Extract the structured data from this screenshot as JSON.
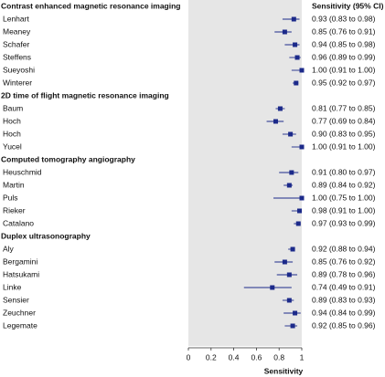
{
  "chart_data": {
    "type": "forest",
    "column_header": "Sensitivity (95% CI)",
    "x_label": "Sensitivity",
    "xlim": [
      0,
      1
    ],
    "xticks": [
      0,
      0.2,
      0.4,
      0.6,
      0.8,
      1
    ],
    "color": "#1c2a8a",
    "background": "#e6e6e6",
    "groups": [
      {
        "name": "Contrast enhanced magnetic resonance imaging",
        "categories": [
          "Lenhart",
          "Meaney",
          "Schafer",
          "Steffens",
          "Sueyoshi",
          "Winterer"
        ],
        "values": [
          0.93,
          0.85,
          0.94,
          0.96,
          1.0,
          0.95
        ],
        "lower": [
          0.83,
          0.76,
          0.85,
          0.89,
          0.91,
          0.92
        ],
        "upper": [
          0.98,
          0.91,
          0.98,
          0.99,
          1.0,
          0.97
        ],
        "value_labels": [
          "0.93 (0.83 to 0.98)",
          "0.85 (0.76 to 0.91)",
          "0.94 (0.85 to 0.98)",
          "0.96 (0.89 to 0.99)",
          "1.00 (0.91 to 1.00)",
          "0.95 (0.92 to 0.97)"
        ]
      },
      {
        "name": "2D time of flight magnetic resonance imaging",
        "categories": [
          "Baum",
          "Hoch",
          "Hoch",
          "Yucel"
        ],
        "values": [
          0.81,
          0.77,
          0.9,
          1.0
        ],
        "lower": [
          0.77,
          0.69,
          0.83,
          0.91
        ],
        "upper": [
          0.85,
          0.84,
          0.95,
          1.0
        ],
        "value_labels": [
          "0.81 (0.77 to 0.85)",
          "0.77 (0.69 to 0.84)",
          "0.90 (0.83 to 0.95)",
          "1.00 (0.91 to 1.00)"
        ]
      },
      {
        "name": "Computed tomography angiography",
        "categories": [
          "Heuschmid",
          "Martin",
          "Puls",
          "Rieker",
          "Catalano"
        ],
        "values": [
          0.91,
          0.89,
          1.0,
          0.98,
          0.97
        ],
        "lower": [
          0.8,
          0.84,
          0.75,
          0.91,
          0.93
        ],
        "upper": [
          0.97,
          0.92,
          1.0,
          1.0,
          0.99
        ],
        "value_labels": [
          "0.91 (0.80 to 0.97)",
          "0.89 (0.84 to 0.92)",
          "1.00 (0.75 to 1.00)",
          "0.98 (0.91 to 1.00)",
          "0.97 (0.93 to 0.99)"
        ]
      },
      {
        "name": "Duplex ultrasonography",
        "categories": [
          "Aly",
          "Bergamini",
          "Hatsukami",
          "Linke",
          "Sensier",
          "Zeuchner",
          "Legemate"
        ],
        "values": [
          0.92,
          0.85,
          0.89,
          0.74,
          0.89,
          0.94,
          0.92
        ],
        "lower": [
          0.88,
          0.76,
          0.78,
          0.49,
          0.83,
          0.84,
          0.85
        ],
        "upper": [
          0.94,
          0.92,
          0.96,
          0.91,
          0.93,
          0.99,
          0.96
        ],
        "value_labels": [
          "0.92 (0.88 to 0.94)",
          "0.85 (0.76 to 0.92)",
          "0.89 (0.78 to 0.96)",
          "0.74 (0.49 to 0.91)",
          "0.89 (0.83 to 0.93)",
          "0.94 (0.84 to 0.99)",
          "0.92 (0.85 to 0.96)"
        ]
      }
    ]
  }
}
